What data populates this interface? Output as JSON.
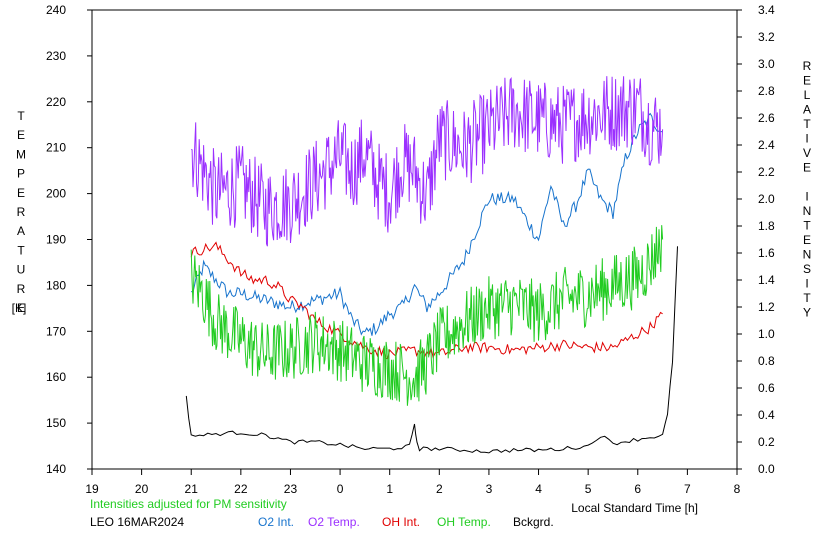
{
  "chart_data": {
    "type": "line",
    "y_left_label": "TEMPERATURE",
    "y_left_unit": "[K]",
    "y_right_label": "RELATIVE INTENSITY",
    "x_label": "Local Standard Time [h]",
    "note": "Intensities adjusted for PM sensitivity",
    "station": "LEO 16MAR2024",
    "grid": false,
    "x_range": [
      19,
      8
    ],
    "x_ticks": [
      "19",
      "20",
      "21",
      "22",
      "23",
      "0",
      "1",
      "2",
      "3",
      "4",
      "5",
      "6",
      "7",
      "8"
    ],
    "y_left_range": [
      140,
      240
    ],
    "y_left_ticks": [
      "140",
      "150",
      "160",
      "170",
      "180",
      "190",
      "200",
      "210",
      "220",
      "230",
      "240"
    ],
    "y_right_range": [
      0.0,
      3.4
    ],
    "y_right_ticks": [
      "0.0",
      "0.2",
      "0.4",
      "0.6",
      "0.8",
      "1.0",
      "1.2",
      "1.4",
      "1.6",
      "1.8",
      "2.0",
      "2.2",
      "2.4",
      "2.6",
      "2.8",
      "3.0",
      "3.2",
      "3.4"
    ],
    "series": [
      {
        "name": "O2 Int.",
        "axis": "right",
        "color": "#1874cd",
        "x": [
          21.0,
          21.25,
          21.5,
          21.75,
          22.0,
          22.5,
          23.0,
          23.5,
          24.0,
          24.25,
          24.5,
          24.75,
          25.0,
          25.25,
          25.5,
          25.75,
          26.0,
          26.5,
          27.0,
          27.5,
          28.0,
          28.25,
          28.5,
          28.75,
          29.0,
          29.25,
          29.5,
          29.75,
          30.0,
          30.25,
          30.5
        ],
        "values": [
          1.3,
          1.5,
          1.4,
          1.3,
          1.3,
          1.25,
          1.2,
          1.25,
          1.3,
          1.1,
          1.0,
          1.05,
          1.15,
          1.2,
          1.35,
          1.2,
          1.3,
          1.55,
          2.0,
          2.0,
          1.7,
          2.1,
          1.8,
          1.95,
          2.2,
          2.0,
          1.9,
          2.3,
          2.5,
          2.6,
          2.5
        ]
      },
      {
        "name": "O2 Temp.",
        "axis": "left",
        "color": "#9b30ff",
        "x": [
          21.0,
          21.25,
          21.5,
          22.0,
          22.5,
          23.0,
          23.5,
          24.0,
          24.25,
          24.5,
          24.75,
          25.0,
          25.25,
          25.5,
          25.75,
          26.0,
          26.5,
          27.0,
          27.5,
          28.0,
          28.5,
          29.0,
          29.5,
          30.0,
          30.25,
          30.5
        ],
        "values": [
          210,
          205,
          200,
          202,
          197,
          198,
          203,
          208,
          205,
          209,
          203,
          200,
          207,
          205,
          199,
          212,
          210,
          214,
          218,
          216,
          215,
          217,
          218,
          219,
          215,
          214
        ]
      },
      {
        "name": "OH Int.",
        "axis": "right",
        "color": "#e00000",
        "x": [
          21.0,
          21.25,
          21.5,
          21.75,
          22.0,
          22.25,
          22.5,
          22.75,
          23.0,
          23.25,
          23.5,
          24.0,
          24.5,
          25.0,
          25.5,
          26.0,
          26.5,
          27.0,
          27.5,
          28.0,
          28.5,
          29.0,
          29.5,
          30.0,
          30.25,
          30.5
        ],
        "values": [
          1.6,
          1.63,
          1.65,
          1.55,
          1.45,
          1.4,
          1.4,
          1.35,
          1.25,
          1.2,
          1.1,
          1.0,
          0.9,
          0.85,
          0.88,
          0.85,
          0.9,
          0.9,
          0.88,
          0.9,
          0.92,
          0.9,
          0.9,
          1.0,
          1.05,
          1.15
        ]
      },
      {
        "name": "OH Temp.",
        "axis": "left",
        "color": "#22cc22",
        "x": [
          21.0,
          21.25,
          21.5,
          22.0,
          22.5,
          23.0,
          23.5,
          24.0,
          24.5,
          25.0,
          25.5,
          25.75,
          26.0,
          26.5,
          27.0,
          27.5,
          28.0,
          28.5,
          29.0,
          29.5,
          30.0,
          30.25,
          30.5
        ],
        "values": [
          182,
          178,
          172,
          168,
          165,
          166,
          168,
          166,
          163,
          162,
          160,
          163,
          168,
          172,
          175,
          176,
          174,
          177,
          178,
          180,
          182,
          185,
          190
        ]
      },
      {
        "name": "Bckgrd.",
        "axis": "right",
        "color": "#000000",
        "x": [
          20.9,
          21.0,
          21.25,
          21.5,
          22.0,
          22.5,
          23.0,
          23.5,
          24.0,
          24.5,
          25.0,
          25.4,
          25.5,
          25.55,
          25.6,
          26.0,
          26.5,
          27.0,
          27.5,
          28.0,
          28.5,
          29.0,
          29.25,
          29.5,
          30.0,
          30.5,
          30.6,
          30.7,
          30.8
        ],
        "values": [
          0.53,
          0.25,
          0.25,
          0.26,
          0.27,
          0.25,
          0.2,
          0.2,
          0.18,
          0.15,
          0.15,
          0.17,
          0.32,
          0.2,
          0.15,
          0.15,
          0.14,
          0.13,
          0.14,
          0.14,
          0.15,
          0.17,
          0.25,
          0.19,
          0.22,
          0.25,
          0.4,
          0.8,
          1.65
        ]
      }
    ]
  }
}
